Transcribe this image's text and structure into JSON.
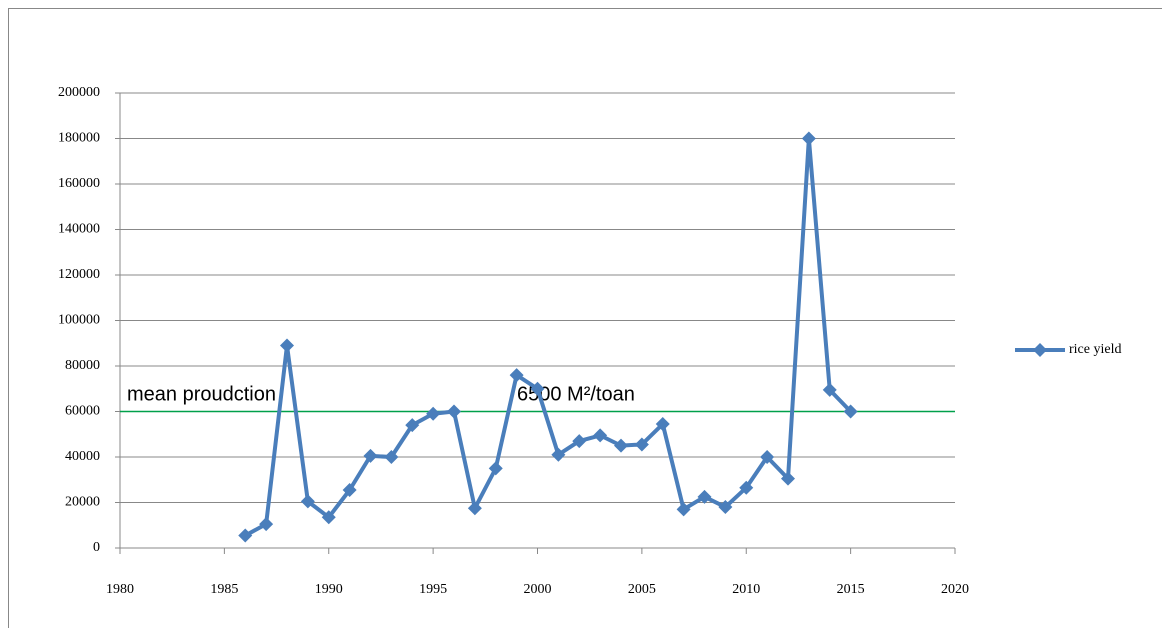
{
  "chart_data": {
    "type": "line",
    "x": [
      1986,
      1987,
      1988,
      1989,
      1990,
      1991,
      1992,
      1993,
      1994,
      1995,
      1996,
      1997,
      1998,
      1999,
      2000,
      2001,
      2002,
      2003,
      2004,
      2005,
      2006,
      2007,
      2008,
      2009,
      2010,
      2011,
      2012,
      2013,
      2014,
      2015
    ],
    "series": [
      {
        "name": "rice yield",
        "color": "#4a7ebb",
        "values": [
          5500,
          10500,
          89000,
          20500,
          13500,
          25500,
          40500,
          40000,
          54000,
          59000,
          60000,
          17500,
          35000,
          76000,
          70000,
          41000,
          47000,
          49500,
          45000,
          45500,
          54500,
          17000,
          22500,
          18000,
          26500,
          40000,
          30500,
          180000,
          69500,
          60000
        ]
      }
    ],
    "xlim": [
      1980,
      2020
    ],
    "xticks": [
      1980,
      1985,
      1990,
      1995,
      2000,
      2005,
      2010,
      2015,
      2020
    ],
    "ylim": [
      0,
      200000
    ],
    "yticks": [
      0,
      20000,
      40000,
      60000,
      80000,
      100000,
      120000,
      140000,
      160000,
      180000,
      200000
    ],
    "grid": true,
    "legend": "right",
    "hline": {
      "value": 60000,
      "color": "#00a04a"
    },
    "annotations": [
      "mean proudction",
      "6500 M²/toan"
    ]
  }
}
